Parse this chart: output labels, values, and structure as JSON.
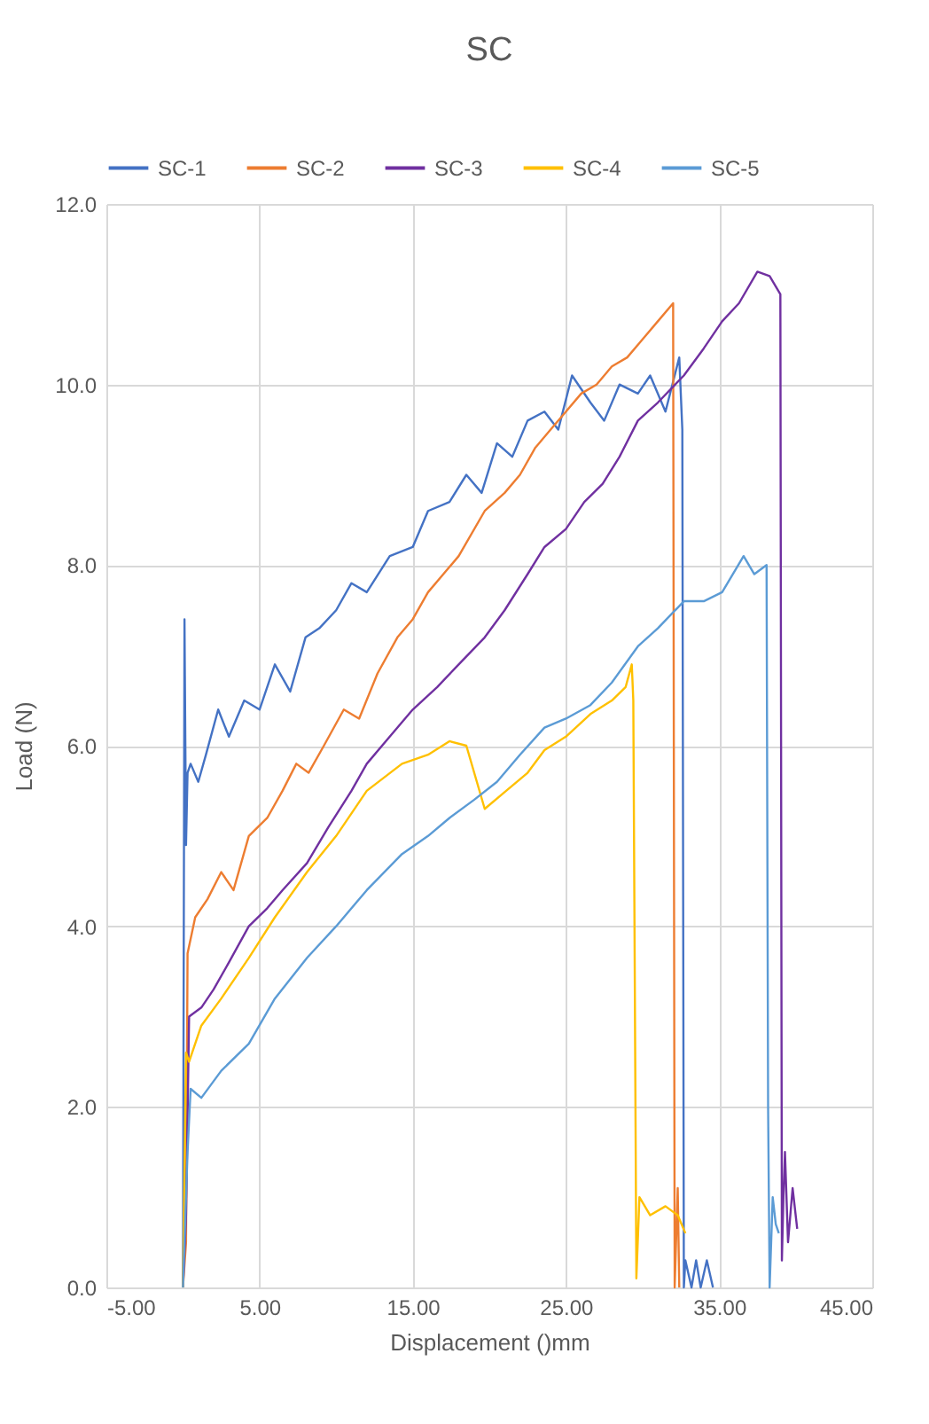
{
  "chart_data": {
    "type": "line",
    "title": "SC",
    "xlabel": "Displacement ()mm",
    "ylabel": "Load (N)",
    "xlim": [
      -5,
      45
    ],
    "ylim": [
      0,
      12
    ],
    "xticks": [
      {
        "value": -5,
        "label": "-5.00"
      },
      {
        "value": 5,
        "label": "5.00"
      },
      {
        "value": 15,
        "label": "15.00"
      },
      {
        "value": 25,
        "label": "25.00"
      },
      {
        "value": 35,
        "label": "35.00"
      },
      {
        "value": 45,
        "label": "45.00"
      }
    ],
    "yticks": [
      {
        "value": 0,
        "label": "0.0"
      },
      {
        "value": 2,
        "label": "2.0"
      },
      {
        "value": 4,
        "label": "4.0"
      },
      {
        "value": 6,
        "label": "6.0"
      },
      {
        "value": 8,
        "label": "8.0"
      },
      {
        "value": 10,
        "label": "10.0"
      },
      {
        "value": 12,
        "label": "12.0"
      }
    ],
    "grid": true,
    "legend": "top",
    "marker": "none",
    "line_style": "solid",
    "series": [
      {
        "name": "SC-1",
        "color": "#4472c4",
        "x": [
          0,
          0.1,
          0.2,
          0.3,
          0.5,
          1,
          1.5,
          2.3,
          3,
          4,
          5,
          6,
          7,
          8,
          8.9,
          10,
          11,
          12,
          13.5,
          15,
          16,
          17.4,
          18.5,
          19.5,
          20.5,
          21.5,
          22.5,
          23.6,
          24.5,
          25.4,
          26.6,
          27.5,
          28.5,
          29.7,
          30.5,
          31.5,
          32.4,
          32.6,
          32.7,
          32.8,
          33.2,
          33.5,
          33.8,
          34.2,
          34.6
        ],
        "values": [
          0,
          7.4,
          4.9,
          5.7,
          5.8,
          5.6,
          5.9,
          6.4,
          6.1,
          6.5,
          6.4,
          6.9,
          6.6,
          7.2,
          7.3,
          7.5,
          7.8,
          7.7,
          8.1,
          8.2,
          8.6,
          8.7,
          9.0,
          8.8,
          9.35,
          9.2,
          9.6,
          9.7,
          9.5,
          10.1,
          9.8,
          9.6,
          10.0,
          9.9,
          10.1,
          9.7,
          10.3,
          9.5,
          0,
          0.3,
          0,
          0.3,
          0,
          0.3,
          0
        ]
      },
      {
        "name": "SC-2",
        "color": "#ed7d31",
        "x": [
          0,
          0.2,
          0.3,
          0.8,
          1.6,
          2.5,
          3.3,
          4.3,
          5.5,
          6.5,
          7.4,
          8.2,
          9.2,
          10.5,
          11.5,
          12.7,
          14,
          15,
          16,
          17,
          18,
          19.7,
          21,
          22,
          23,
          24,
          25,
          26,
          27,
          28,
          29,
          30,
          31,
          32,
          32.1,
          32.3,
          32.4
        ],
        "values": [
          0,
          0.5,
          3.7,
          4.1,
          4.3,
          4.6,
          4.4,
          5.0,
          5.2,
          5.5,
          5.8,
          5.7,
          6.0,
          6.4,
          6.3,
          6.8,
          7.2,
          7.4,
          7.7,
          7.9,
          8.1,
          8.6,
          8.8,
          9.0,
          9.3,
          9.5,
          9.7,
          9.9,
          10.0,
          10.2,
          10.3,
          10.5,
          10.7,
          10.9,
          0,
          1.1,
          0
        ]
      },
      {
        "name": "SC-3",
        "color": "#7030a0",
        "x": [
          0,
          0.2,
          0.4,
          1.2,
          2,
          3,
          4.3,
          5.5,
          6.5,
          8.1,
          9.5,
          11,
          12,
          13.5,
          15,
          16.6,
          18,
          19.7,
          21,
          22.5,
          23.6,
          25,
          26.2,
          27.4,
          28.5,
          29.7,
          31,
          32.7,
          34,
          35.2,
          36.3,
          37.5,
          38.3,
          39,
          39.1,
          39.2,
          39.3,
          39.5,
          39.8,
          40.1
        ],
        "values": [
          0,
          0.8,
          3.0,
          3.1,
          3.3,
          3.6,
          4.0,
          4.2,
          4.4,
          4.7,
          5.1,
          5.5,
          5.8,
          6.1,
          6.4,
          6.65,
          6.9,
          7.2,
          7.5,
          7.9,
          8.2,
          8.4,
          8.7,
          8.9,
          9.2,
          9.6,
          9.8,
          10.1,
          10.4,
          10.7,
          10.9,
          11.25,
          11.2,
          11.0,
          0.3,
          1.0,
          1.5,
          0.5,
          1.1,
          0.65
        ]
      },
      {
        "name": "SC-4",
        "color": "#ffc000",
        "x": [
          0,
          0.2,
          0.4,
          1.2,
          2.5,
          4.3,
          6,
          8.1,
          10,
          12,
          14.3,
          16,
          17.4,
          18.5,
          19.7,
          21.1,
          22.5,
          23.6,
          25,
          26.6,
          28,
          28.9,
          29.3,
          29.4,
          29.6,
          29.8,
          30.5,
          31.5,
          32.3,
          32.8
        ],
        "values": [
          0,
          2.6,
          2.5,
          2.9,
          3.2,
          3.65,
          4.1,
          4.6,
          5.0,
          5.5,
          5.8,
          5.9,
          6.05,
          6.0,
          5.3,
          5.5,
          5.7,
          5.95,
          6.1,
          6.35,
          6.5,
          6.65,
          6.9,
          6.5,
          0.1,
          1.0,
          0.8,
          0.9,
          0.8,
          0.6
        ]
      },
      {
        "name": "SC-5",
        "color": "#5b9bd5",
        "x": [
          0,
          0.3,
          0.5,
          1.2,
          2.5,
          4.3,
          6,
          8.1,
          10,
          12,
          14.3,
          16,
          17.4,
          19,
          20.5,
          22,
          23.6,
          25,
          26.6,
          28,
          29.7,
          31,
          32.7,
          34,
          35.2,
          36.6,
          37.3,
          38.1,
          38.2,
          38.3,
          38.5,
          38.7,
          38.9
        ],
        "values": [
          0,
          1.5,
          2.2,
          2.1,
          2.4,
          2.7,
          3.2,
          3.65,
          4.0,
          4.4,
          4.8,
          5.0,
          5.2,
          5.4,
          5.6,
          5.9,
          6.2,
          6.3,
          6.45,
          6.7,
          7.1,
          7.3,
          7.6,
          7.6,
          7.7,
          8.1,
          7.9,
          8.0,
          2.0,
          0,
          1.0,
          0.7,
          0.6
        ]
      }
    ]
  }
}
